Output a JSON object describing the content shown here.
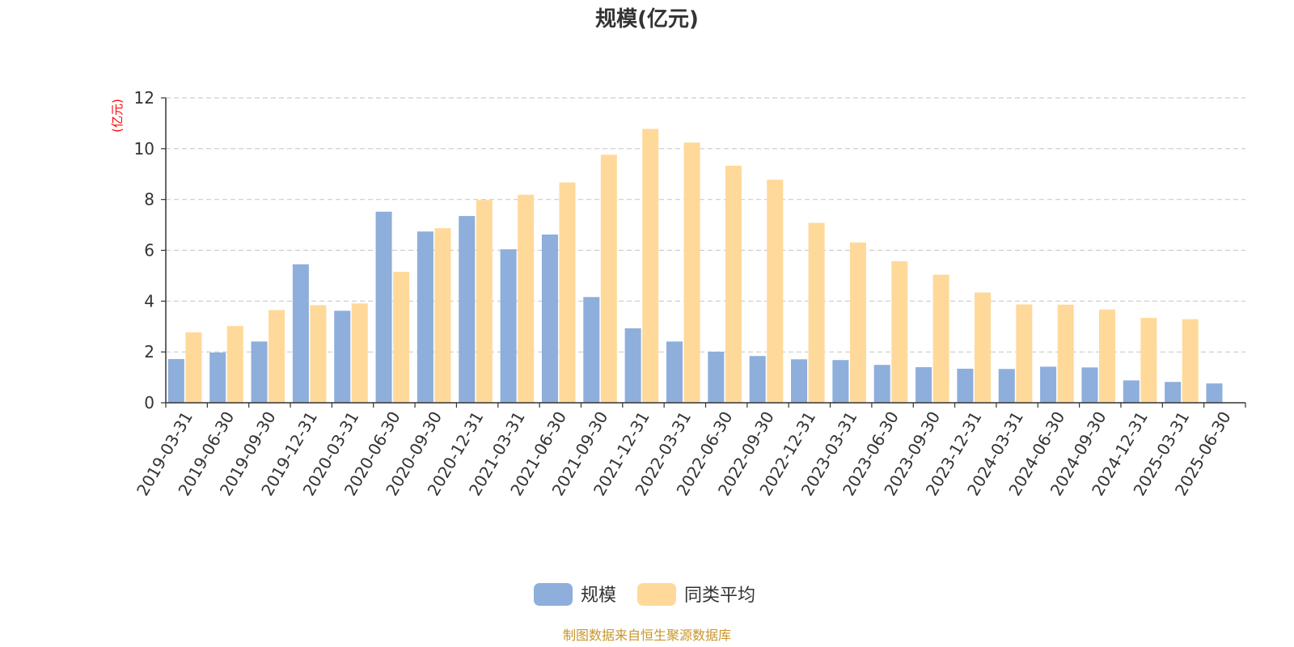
{
  "chart_data": {
    "type": "bar",
    "title": "规模(亿元)",
    "ylabel": "(亿元)",
    "ylim": [
      0,
      12
    ],
    "yticks": [
      0,
      2,
      4,
      6,
      8,
      10,
      12
    ],
    "grid": true,
    "legend_position": "bottom-center",
    "categories": [
      "2019-03-31",
      "2019-06-30",
      "2019-09-30",
      "2019-12-31",
      "2020-03-31",
      "2020-06-30",
      "2020-09-30",
      "2020-12-31",
      "2021-03-31",
      "2021-06-30",
      "2021-09-30",
      "2021-12-31",
      "2022-03-31",
      "2022-06-30",
      "2022-09-30",
      "2022-12-31",
      "2023-03-31",
      "2023-06-30",
      "2023-09-30",
      "2023-12-31",
      "2024-03-31",
      "2024-06-30",
      "2024-09-30",
      "2024-12-31",
      "2025-03-31",
      "2025-06-30"
    ],
    "series": [
      {
        "name": "规模",
        "color": "#8eaedc",
        "values": [
          1.72,
          1.98,
          2.41,
          5.45,
          3.62,
          7.52,
          6.74,
          7.35,
          6.04,
          6.62,
          4.16,
          2.93,
          2.41,
          2.01,
          1.84,
          1.71,
          1.68,
          1.49,
          1.4,
          1.34,
          1.33,
          1.42,
          1.39,
          0.88,
          0.82,
          0.76
        ]
      },
      {
        "name": "同类平均",
        "color": "#ffd99a",
        "values": [
          2.77,
          3.02,
          3.65,
          3.84,
          3.91,
          5.15,
          6.87,
          7.98,
          8.19,
          8.67,
          9.76,
          10.78,
          10.24,
          9.33,
          8.78,
          7.08,
          6.31,
          5.57,
          5.04,
          4.34,
          3.87,
          3.86,
          3.67,
          3.34,
          3.29,
          null
        ]
      }
    ]
  },
  "footer": {
    "source": "制图数据来自恒生聚源数据库"
  }
}
